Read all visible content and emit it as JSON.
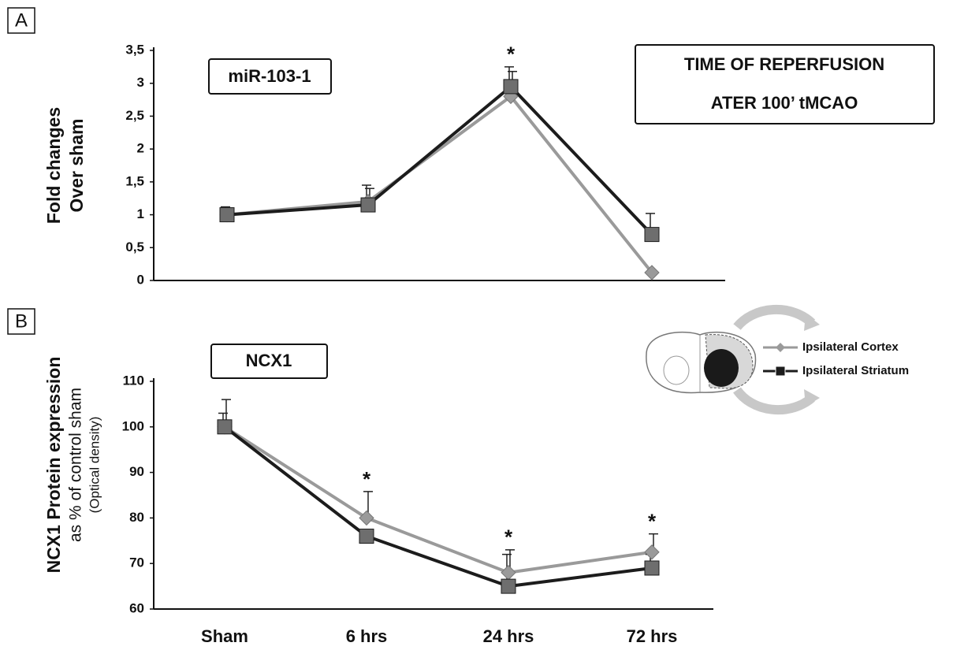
{
  "chart_data": [
    {
      "type": "line",
      "panel": "A",
      "title": "miR-103-1",
      "annotation": [
        "TIME OF REPERFUSION",
        "ATER 100’ tMCAO"
      ],
      "ylabel": [
        "Fold changes",
        "Over sham"
      ],
      "categories": [
        null,
        null,
        null,
        null
      ],
      "series": [
        {
          "color": "#9a9a9a",
          "marker": "diamond",
          "values": [
            1.0,
            1.2,
            2.8,
            0.12
          ],
          "errors": [
            0.1,
            0.2,
            0.38,
            null
          ]
        },
        {
          "color": "#1c1c1c",
          "marker": "square",
          "values": [
            1.0,
            1.15,
            2.95,
            0.7
          ],
          "errors": [
            0.12,
            0.3,
            0.3,
            0.32
          ]
        }
      ],
      "significance": [
        null,
        null,
        "*",
        null
      ],
      "ylim": [
        0,
        3.5
      ],
      "yticks": [
        0,
        {
          "value": 0.5,
          "label": "0,5"
        },
        1,
        {
          "value": 1.5,
          "label": "1,5"
        },
        2,
        {
          "value": 2.5,
          "label": "2,5"
        },
        3,
        {
          "value": 3.5,
          "label": "3,5"
        }
      ],
      "grid": false
    },
    {
      "type": "line",
      "panel": "B",
      "title": "NCX1",
      "ylabel": [
        "NCX1 Protein expression",
        "as % of control sham",
        "(Optical density)"
      ],
      "categories": [
        "Sham",
        "6 hrs",
        "24 hrs",
        "72 hrs"
      ],
      "series": [
        {
          "name": "Ipsilateral  Cortex",
          "color": "#9a9a9a",
          "marker": "diamond",
          "values": [
            100,
            80,
            68,
            72.5
          ],
          "errors": [
            6,
            5.8,
            5,
            4
          ]
        },
        {
          "name": "Ipsilateral Striatum",
          "color": "#1c1c1c",
          "marker": "square",
          "values": [
            100,
            76,
            65,
            69
          ],
          "errors": [
            3,
            null,
            7,
            3
          ]
        }
      ],
      "significance": [
        null,
        "*",
        "*",
        "*"
      ],
      "ylim": [
        60,
        110
      ],
      "yticks": [
        60,
        70,
        80,
        90,
        100,
        110
      ],
      "grid": false,
      "legend": true
    }
  ]
}
